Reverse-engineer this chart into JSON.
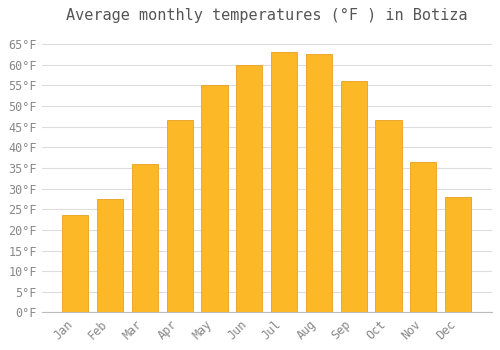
{
  "title": "Average monthly temperatures (°F ) in Botiza",
  "months": [
    "Jan",
    "Feb",
    "Mar",
    "Apr",
    "May",
    "Jun",
    "Jul",
    "Aug",
    "Sep",
    "Oct",
    "Nov",
    "Dec"
  ],
  "values": [
    23.5,
    27.5,
    36.0,
    46.5,
    55.0,
    60.0,
    63.0,
    62.5,
    56.0,
    46.5,
    36.5,
    28.0
  ],
  "bar_color": "#FDB827",
  "bar_edge_color": "#E8A020",
  "background_color": "#ffffff",
  "plot_bg_color": "#ffffff",
  "grid_color": "#dddddd",
  "text_color": "#888888",
  "title_color": "#555555",
  "ylim": [
    0,
    68
  ],
  "yticks": [
    0,
    5,
    10,
    15,
    20,
    25,
    30,
    35,
    40,
    45,
    50,
    55,
    60,
    65
  ],
  "title_fontsize": 11,
  "tick_fontsize": 8.5,
  "bar_width": 0.75
}
